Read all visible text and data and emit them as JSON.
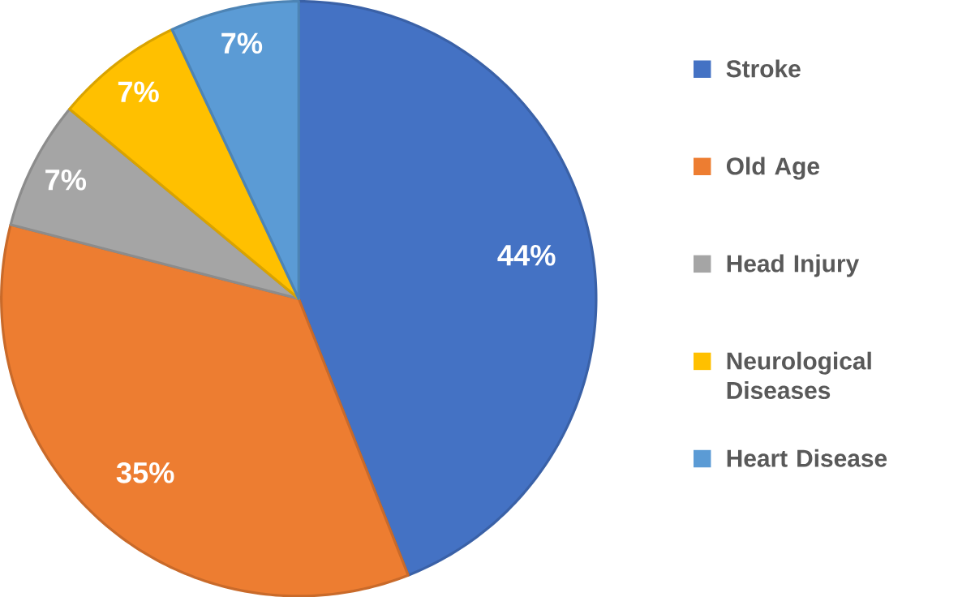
{
  "chart_data": {
    "type": "pie",
    "categories": [
      "Stroke",
      "Old Age",
      "Head Injury",
      "Neurological Diseases",
      "Heart Disease"
    ],
    "values": [
      44,
      35,
      7,
      7,
      7
    ],
    "colors": [
      "#4472c4",
      "#ed7d31",
      "#a5a5a5",
      "#ffc000",
      "#5b9bd5"
    ],
    "value_labels": [
      "44%",
      "35%",
      "7%",
      "7%",
      "7%"
    ],
    "legend": "right"
  }
}
